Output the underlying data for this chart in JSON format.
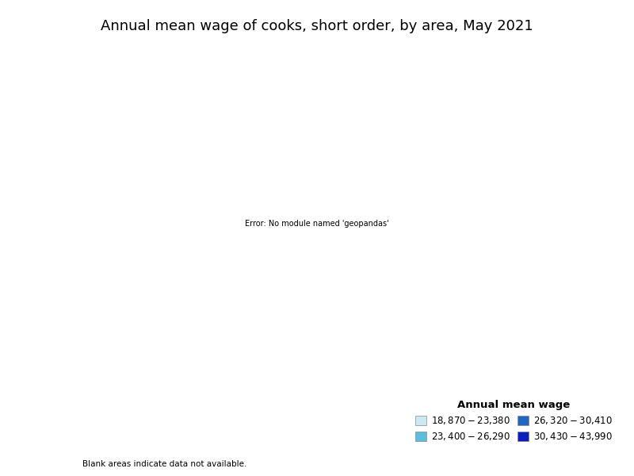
{
  "title": "Annual mean wage of cooks, short order, by area, May 2021",
  "legend_title": "Annual mean wage",
  "legend_note": "Blank areas indicate data not available.",
  "legend_items": [
    {
      "label": "$18,870 - $23,380",
      "color": "#cce8f5"
    },
    {
      "label": "$23,400 - $26,290",
      "color": "#5bbde0"
    },
    {
      "label": "$26,320 - $30,410",
      "color": "#2166c0"
    },
    {
      "label": "$30,430 - $43,990",
      "color": "#0a1fbd"
    }
  ],
  "no_data_color": "#ffffff",
  "background_color": "#ffffff",
  "title_fontsize": 13,
  "legend_fontsize": 8.5,
  "legend_title_fontsize": 9.5,
  "edge_color": "#555555",
  "edge_linewidth": 0.3
}
